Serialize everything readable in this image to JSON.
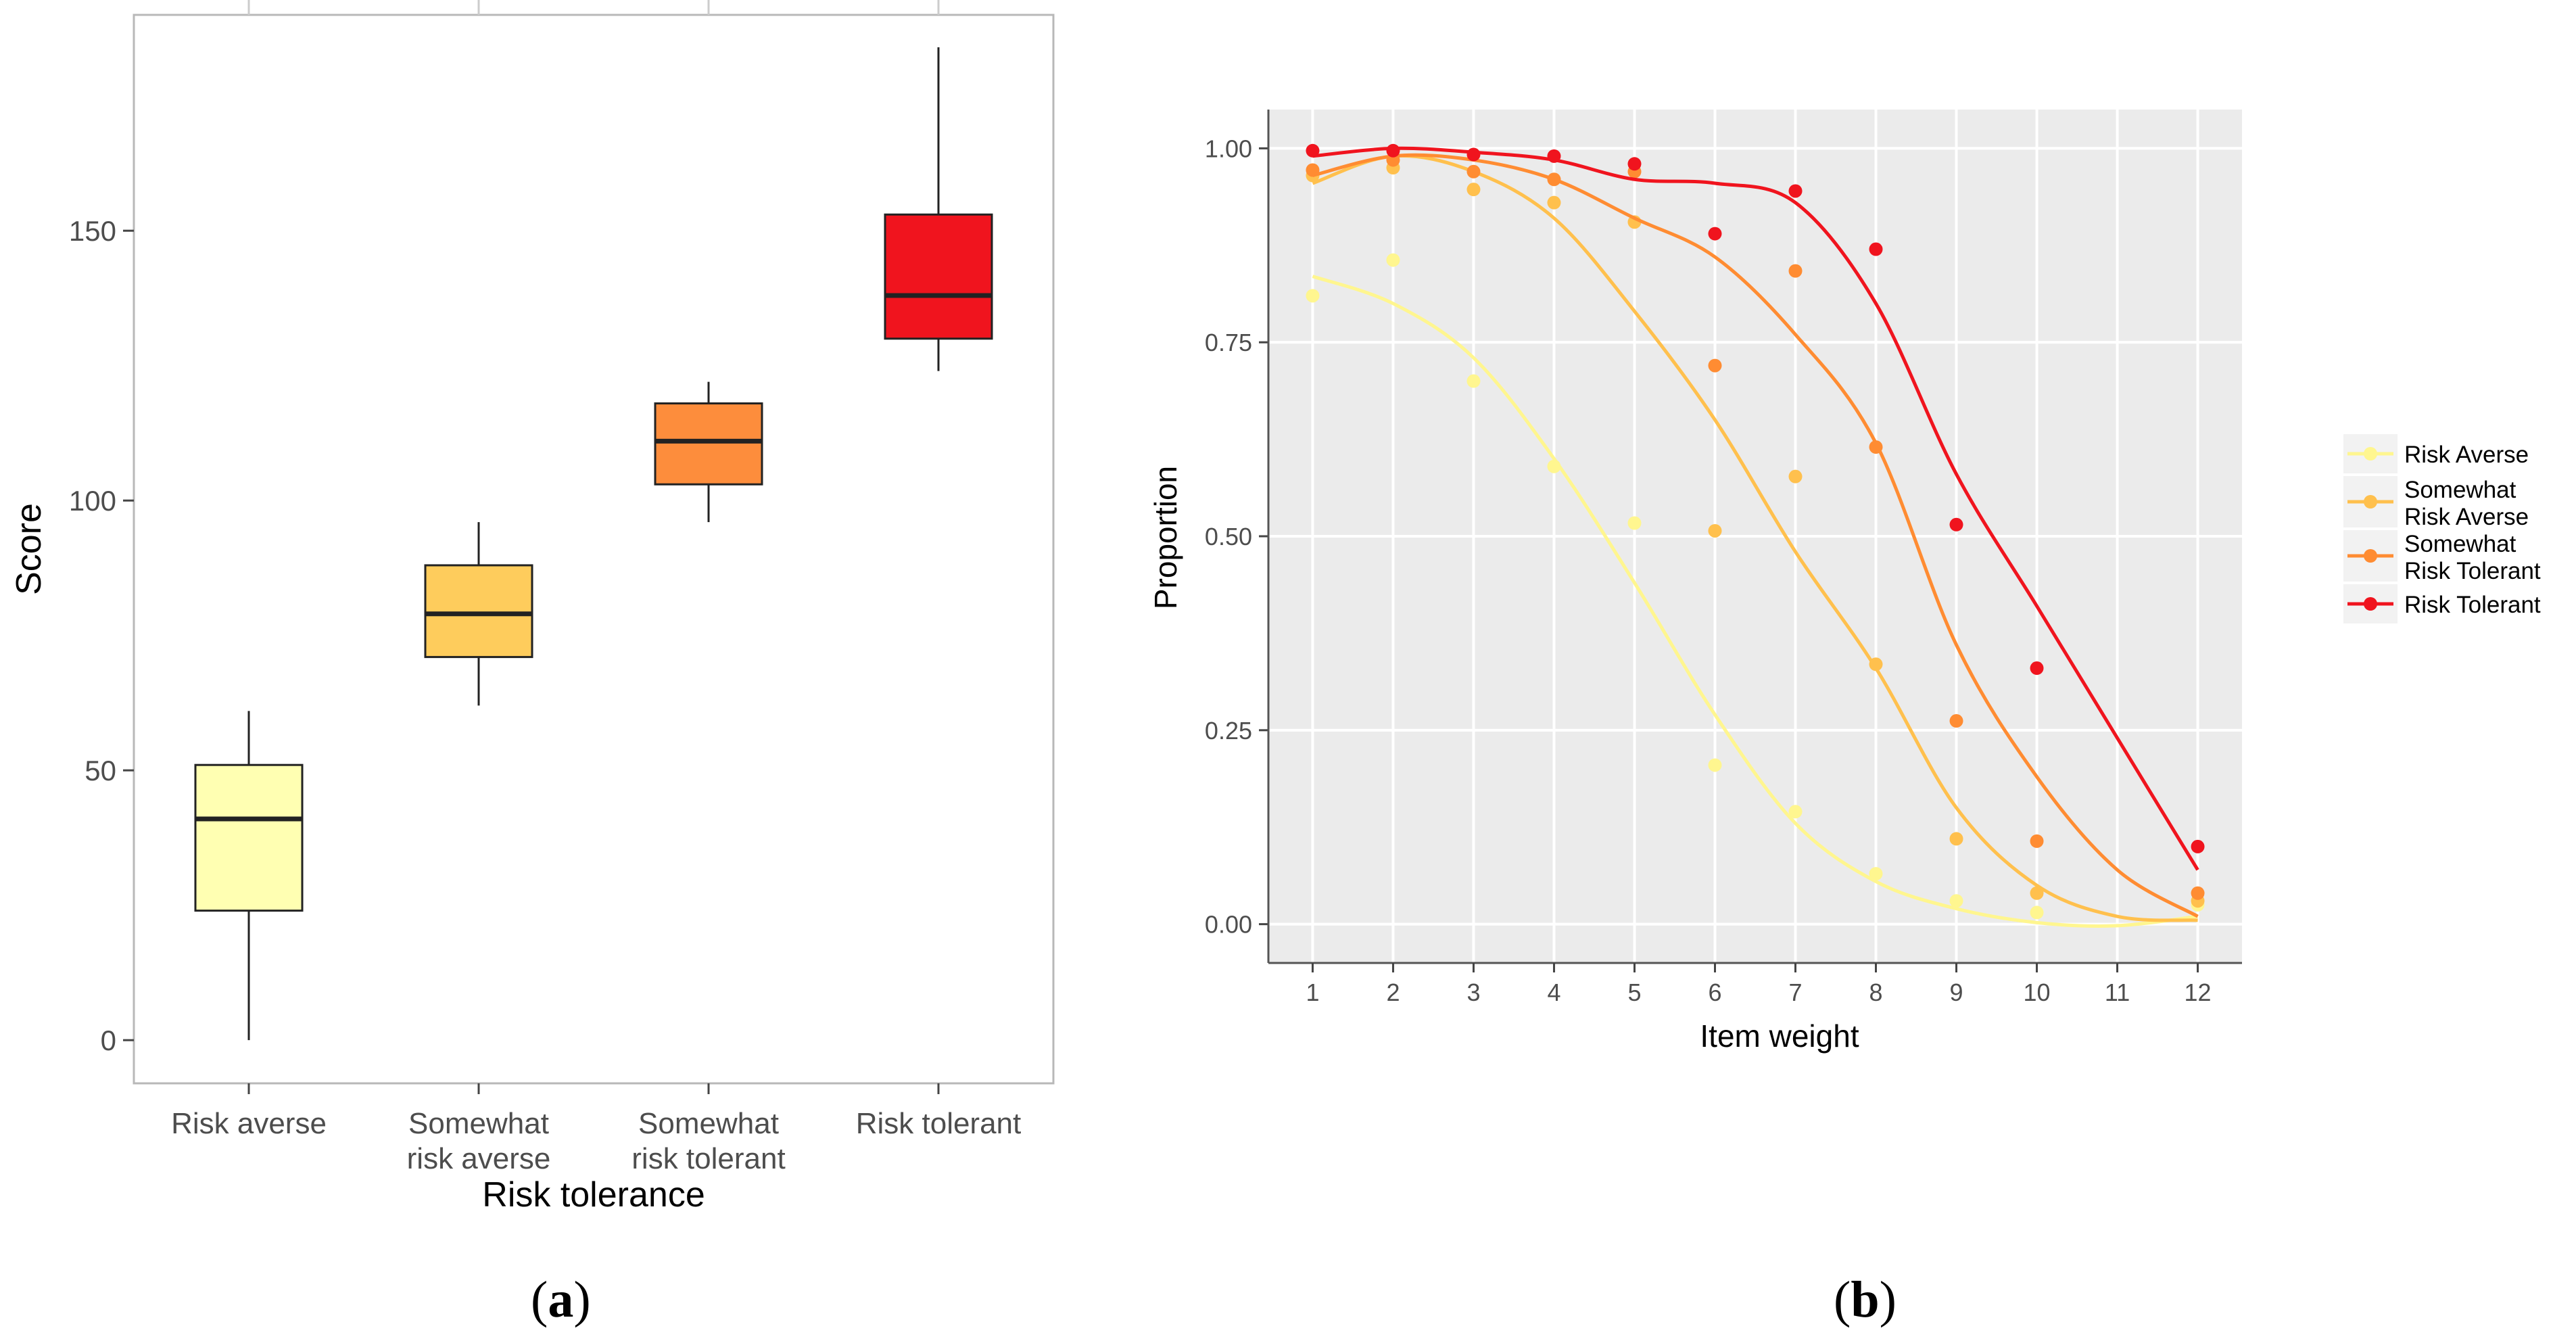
{
  "chart_data": [
    {
      "type": "box",
      "panel": "a",
      "title": "",
      "xlabel": "Risk tolerance",
      "ylabel": "Score",
      "ylim": [
        -8,
        190
      ],
      "yticks": [
        0,
        50,
        100,
        150
      ],
      "categories": [
        [
          "Risk averse"
        ],
        [
          "Somewhat",
          "risk averse"
        ],
        [
          "Somewhat",
          "risk tolerant"
        ],
        [
          "Risk tolerant"
        ]
      ],
      "boxes": [
        {
          "min": 0,
          "q1": 24,
          "median": 41,
          "q3": 51,
          "max": 61,
          "color": "#FFFFB2"
        },
        {
          "min": 62,
          "q1": 71,
          "median": 79,
          "q3": 88,
          "max": 96,
          "color": "#FECC5C"
        },
        {
          "min": 96,
          "q1": 103,
          "median": 111,
          "q3": 118,
          "max": 122,
          "color": "#FD8D3C"
        },
        {
          "min": 124,
          "q1": 130,
          "median": 138,
          "q3": 153,
          "max": 184,
          "color": "#F0141E"
        }
      ],
      "caption": "a"
    },
    {
      "type": "line",
      "panel": "b",
      "title": "",
      "xlabel": "Item weight",
      "ylabel": "Proportion",
      "xlim": [
        0.45,
        12.55
      ],
      "ylim": [
        -0.05,
        1.05
      ],
      "xticks": [
        1,
        2,
        3,
        4,
        5,
        6,
        7,
        8,
        9,
        10,
        11,
        12
      ],
      "yticks": [
        "0.00",
        "0.25",
        "0.50",
        "0.75",
        "1.00"
      ],
      "legend_position": "right",
      "series": [
        {
          "name": "Risk Averse",
          "legend_lines": [
            "Risk Averse"
          ],
          "color": "#FFF68F",
          "points": [
            [
              1,
              0.81
            ],
            [
              2,
              0.856
            ],
            [
              3,
              0.7
            ],
            [
              4,
              0.59
            ],
            [
              5,
              0.517
            ],
            [
              6,
              0.205
            ],
            [
              7,
              0.145
            ],
            [
              8,
              0.065
            ],
            [
              9,
              0.03
            ],
            [
              10,
              0.015
            ],
            [
              12,
              0.025
            ]
          ],
          "smooth": [
            [
              1,
              0.835
            ],
            [
              2,
              0.8
            ],
            [
              3,
              0.73
            ],
            [
              4,
              0.6
            ],
            [
              5,
              0.44
            ],
            [
              6,
              0.27
            ],
            [
              7,
              0.13
            ],
            [
              8,
              0.055
            ],
            [
              9,
              0.02
            ],
            [
              10,
              0.002
            ],
            [
              11,
              -0.002
            ],
            [
              12,
              0.01
            ]
          ]
        },
        {
          "name": "Somewhat Risk Averse",
          "legend_lines": [
            "Somewhat",
            "Risk Averse"
          ],
          "color": "#FFC04D",
          "points": [
            [
              1,
              0.965
            ],
            [
              2,
              0.975
            ],
            [
              3,
              0.947
            ],
            [
              4,
              0.93
            ],
            [
              5,
              0.905
            ],
            [
              6,
              0.507
            ],
            [
              7,
              0.577
            ],
            [
              8,
              0.335
            ],
            [
              9,
              0.11
            ],
            [
              10,
              0.04
            ],
            [
              12,
              0.03
            ]
          ],
          "smooth": [
            [
              1,
              0.955
            ],
            [
              2,
              0.99
            ],
            [
              3,
              0.97
            ],
            [
              4,
              0.91
            ],
            [
              5,
              0.79
            ],
            [
              6,
              0.65
            ],
            [
              7,
              0.48
            ],
            [
              8,
              0.33
            ],
            [
              9,
              0.15
            ],
            [
              10,
              0.05
            ],
            [
              11,
              0.01
            ],
            [
              12,
              0.005
            ]
          ]
        },
        {
          "name": "Somewhat Risk Tolerant",
          "legend_lines": [
            "Somewhat",
            "Risk Tolerant"
          ],
          "color": "#FF8C32",
          "points": [
            [
              1,
              0.972
            ],
            [
              2,
              0.985
            ],
            [
              3,
              0.97
            ],
            [
              4,
              0.96
            ],
            [
              5,
              0.97
            ],
            [
              6,
              0.72
            ],
            [
              7,
              0.842
            ],
            [
              8,
              0.615
            ],
            [
              9,
              0.262
            ],
            [
              10,
              0.107
            ],
            [
              12,
              0.04
            ]
          ],
          "smooth": [
            [
              1,
              0.965
            ],
            [
              2,
              0.99
            ],
            [
              3,
              0.985
            ],
            [
              4,
              0.96
            ],
            [
              5,
              0.91
            ],
            [
              6,
              0.86
            ],
            [
              7,
              0.76
            ],
            [
              8,
              0.62
            ],
            [
              9,
              0.36
            ],
            [
              10,
              0.19
            ],
            [
              11,
              0.07
            ],
            [
              12,
              0.01
            ]
          ]
        },
        {
          "name": "Risk Tolerant",
          "legend_lines": [
            "Risk Tolerant"
          ],
          "color": "#F0141E",
          "points": [
            [
              1,
              0.997
            ],
            [
              2,
              0.997
            ],
            [
              3,
              0.992
            ],
            [
              4,
              0.99
            ],
            [
              5,
              0.98
            ],
            [
              6,
              0.89
            ],
            [
              7,
              0.945
            ],
            [
              8,
              0.87
            ],
            [
              9,
              0.515
            ],
            [
              10,
              0.33
            ],
            [
              12,
              0.1
            ]
          ],
          "smooth": [
            [
              1,
              0.99
            ],
            [
              2,
              1.0
            ],
            [
              3,
              0.995
            ],
            [
              4,
              0.985
            ],
            [
              5,
              0.96
            ],
            [
              6,
              0.955
            ],
            [
              7,
              0.93
            ],
            [
              8,
              0.8
            ],
            [
              9,
              0.58
            ],
            [
              10,
              0.41
            ],
            [
              11,
              0.24
            ],
            [
              12,
              0.07
            ]
          ]
        }
      ],
      "caption": "b"
    }
  ]
}
